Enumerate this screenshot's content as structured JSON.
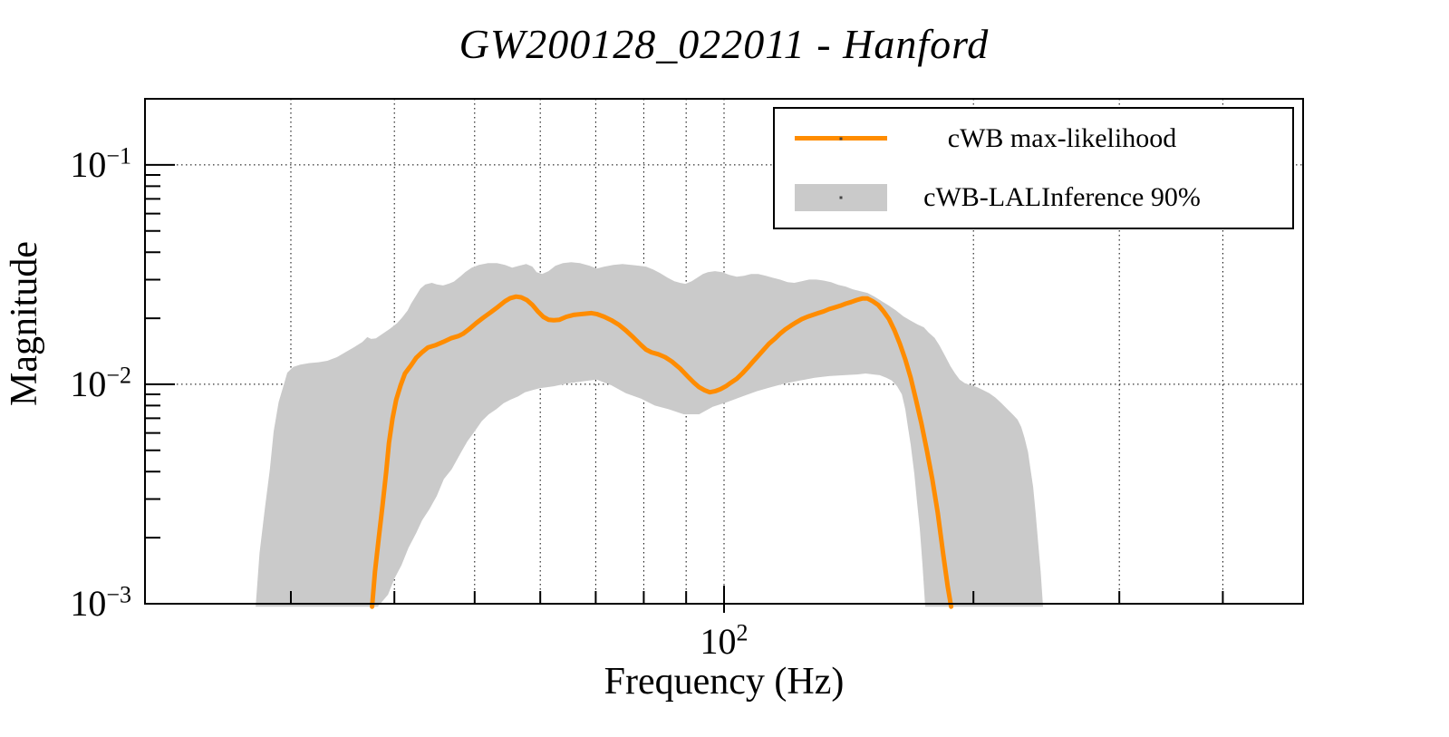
{
  "chart_data": {
    "type": "line",
    "title": "GW200128_022011 - Hanford",
    "xlabel": "Frequency (Hz)",
    "ylabel": "Magnitude",
    "xscale": "log",
    "yscale": "log",
    "xlim": [
      20,
      500
    ],
    "ylim": [
      0.001,
      0.2
    ],
    "grid": "dotted",
    "legend_position": "top-right",
    "colors": {
      "line": "#ff8c00",
      "band": "#cacaca",
      "axis": "#000000",
      "background": "#ffffff"
    },
    "axes": {
      "x": {
        "major_ticks": [
          {
            "value": 100,
            "base": "10",
            "exp": "2"
          }
        ],
        "minor_ticks": [
          30,
          40,
          50,
          60,
          70,
          80,
          90,
          200,
          300,
          400
        ]
      },
      "y": {
        "major_ticks": [
          {
            "value": 0.1,
            "base": "10",
            "exp": "−1"
          },
          {
            "value": 0.01,
            "base": "10",
            "exp": "−2"
          },
          {
            "value": 0.001,
            "base": "10",
            "exp": "−3"
          }
        ],
        "minor_ticks": [
          0.002,
          0.003,
          0.004,
          0.005,
          0.006,
          0.007,
          0.008,
          0.009,
          0.02,
          0.03,
          0.04,
          0.05,
          0.06,
          0.07,
          0.08,
          0.09
        ]
      }
    },
    "series": [
      {
        "name": "cWB max-likelihood",
        "type": "line",
        "color": "#ff8c00",
        "points": [
          [
            37.6,
            0.00097
          ],
          [
            37.9,
            0.0014
          ],
          [
            38.3,
            0.002
          ],
          [
            38.7,
            0.0028
          ],
          [
            39.1,
            0.004
          ],
          [
            39.4,
            0.0054
          ],
          [
            39.8,
            0.007
          ],
          [
            40.2,
            0.0085
          ],
          [
            40.7,
            0.0099
          ],
          [
            41.2,
            0.0112
          ],
          [
            41.9,
            0.0122
          ],
          [
            42.5,
            0.0132
          ],
          [
            43.2,
            0.014
          ],
          [
            43.9,
            0.0147
          ],
          [
            44.9,
            0.0151
          ],
          [
            45.8,
            0.0156
          ],
          [
            46.8,
            0.0162
          ],
          [
            47.8,
            0.0166
          ],
          [
            48.4,
            0.017
          ],
          [
            49.2,
            0.0178
          ],
          [
            50.2,
            0.019
          ],
          [
            51.2,
            0.0201
          ],
          [
            52.3,
            0.0213
          ],
          [
            53.4,
            0.0226
          ],
          [
            54.4,
            0.0239
          ],
          [
            55.2,
            0.0247
          ],
          [
            56.1,
            0.0251
          ],
          [
            56.9,
            0.0249
          ],
          [
            57.8,
            0.0242
          ],
          [
            58.7,
            0.023
          ],
          [
            59.6,
            0.0215
          ],
          [
            60.5,
            0.0203
          ],
          [
            61.4,
            0.0197
          ],
          [
            62.3,
            0.0196
          ],
          [
            63.3,
            0.0197
          ],
          [
            64.5,
            0.0203
          ],
          [
            65.8,
            0.0207
          ],
          [
            67.4,
            0.0209
          ],
          [
            69.2,
            0.0211
          ],
          [
            70.2,
            0.0209
          ],
          [
            71.7,
            0.0203
          ],
          [
            73.1,
            0.0196
          ],
          [
            74.6,
            0.0187
          ],
          [
            76.1,
            0.0176
          ],
          [
            77.8,
            0.0163
          ],
          [
            79.4,
            0.0151
          ],
          [
            80.5,
            0.0144
          ],
          [
            81.7,
            0.014
          ],
          [
            83.3,
            0.0137
          ],
          [
            84.9,
            0.0133
          ],
          [
            86.5,
            0.0127
          ],
          [
            88.5,
            0.0118
          ],
          [
            90.5,
            0.0108
          ],
          [
            91.9,
            0.0102
          ],
          [
            93.3,
            0.0097
          ],
          [
            94.7,
            0.0094
          ],
          [
            96.1,
            0.0092
          ],
          [
            97.5,
            0.0093
          ],
          [
            99.0,
            0.0095
          ],
          [
            100.5,
            0.0098
          ],
          [
            102.0,
            0.0102
          ],
          [
            103.6,
            0.0106
          ],
          [
            105.2,
            0.0112
          ],
          [
            106.8,
            0.0119
          ],
          [
            108.4,
            0.0127
          ],
          [
            110.0,
            0.0135
          ],
          [
            111.7,
            0.0144
          ],
          [
            113.3,
            0.0153
          ],
          [
            115.1,
            0.0161
          ],
          [
            116.8,
            0.017
          ],
          [
            118.6,
            0.0178
          ],
          [
            120.4,
            0.0185
          ],
          [
            122.3,
            0.0192
          ],
          [
            124.1,
            0.0198
          ],
          [
            126.0,
            0.0203
          ],
          [
            128.0,
            0.0207
          ],
          [
            129.9,
            0.0211
          ],
          [
            131.9,
            0.0215
          ],
          [
            133.9,
            0.022
          ],
          [
            136.0,
            0.0224
          ],
          [
            138.1,
            0.0228
          ],
          [
            140.2,
            0.0233
          ],
          [
            142.4,
            0.0237
          ],
          [
            144.6,
            0.0242
          ],
          [
            146.8,
            0.0246
          ],
          [
            149.0,
            0.0246
          ],
          [
            151.2,
            0.0239
          ],
          [
            153.5,
            0.023
          ],
          [
            155.8,
            0.0215
          ],
          [
            158.2,
            0.0198
          ],
          [
            160.6,
            0.0176
          ],
          [
            163.0,
            0.0153
          ],
          [
            165.5,
            0.013
          ],
          [
            168.0,
            0.0107
          ],
          [
            170.5,
            0.0085
          ],
          [
            173.1,
            0.0066
          ],
          [
            175.7,
            0.005
          ],
          [
            178.4,
            0.0037
          ],
          [
            181.1,
            0.0026
          ],
          [
            183.8,
            0.0017
          ],
          [
            186.2,
            0.0012
          ],
          [
            188.0,
            0.00097
          ]
        ]
      },
      {
        "name": "cWB-LALInference 90%",
        "type": "band",
        "color": "#cacaca",
        "upper": [
          [
            27.2,
            0.00097
          ],
          [
            27.5,
            0.0017
          ],
          [
            27.9,
            0.0027
          ],
          [
            28.3,
            0.0041
          ],
          [
            28.6,
            0.0061
          ],
          [
            29.0,
            0.0083
          ],
          [
            29.4,
            0.0099
          ],
          [
            29.7,
            0.0113
          ],
          [
            30.2,
            0.012
          ],
          [
            30.8,
            0.0123
          ],
          [
            31.6,
            0.0125
          ],
          [
            32.4,
            0.0126
          ],
          [
            33.2,
            0.0128
          ],
          [
            34.1,
            0.0133
          ],
          [
            34.9,
            0.014
          ],
          [
            35.8,
            0.0148
          ],
          [
            36.6,
            0.0156
          ],
          [
            37.1,
            0.0164
          ],
          [
            37.5,
            0.0161
          ],
          [
            38.0,
            0.0162
          ],
          [
            38.7,
            0.017
          ],
          [
            39.5,
            0.0179
          ],
          [
            40.3,
            0.019
          ],
          [
            40.9,
            0.0202
          ],
          [
            41.5,
            0.0217
          ],
          [
            41.9,
            0.0233
          ],
          [
            42.5,
            0.0254
          ],
          [
            43.0,
            0.0273
          ],
          [
            43.6,
            0.0285
          ],
          [
            44.4,
            0.029
          ],
          [
            45.0,
            0.0285
          ],
          [
            45.8,
            0.0282
          ],
          [
            46.6,
            0.0288
          ],
          [
            47.2,
            0.0294
          ],
          [
            48.0,
            0.0309
          ],
          [
            48.7,
            0.0324
          ],
          [
            49.6,
            0.034
          ],
          [
            50.6,
            0.035
          ],
          [
            51.9,
            0.0357
          ],
          [
            53.2,
            0.0357
          ],
          [
            54.4,
            0.035
          ],
          [
            55.5,
            0.034
          ],
          [
            56.6,
            0.0347
          ],
          [
            57.7,
            0.0353
          ],
          [
            58.7,
            0.0344
          ],
          [
            59.4,
            0.0324
          ],
          [
            60.3,
            0.0318
          ],
          [
            61.4,
            0.0328
          ],
          [
            62.6,
            0.0347
          ],
          [
            63.9,
            0.0357
          ],
          [
            65.4,
            0.036
          ],
          [
            67.0,
            0.0357
          ],
          [
            68.8,
            0.0347
          ],
          [
            70.2,
            0.0337
          ],
          [
            71.7,
            0.0344
          ],
          [
            73.5,
            0.035
          ],
          [
            75.4,
            0.0353
          ],
          [
            77.3,
            0.035
          ],
          [
            78.9,
            0.0347
          ],
          [
            80.5,
            0.0344
          ],
          [
            82.1,
            0.0334
          ],
          [
            83.7,
            0.0321
          ],
          [
            85.5,
            0.0306
          ],
          [
            87.1,
            0.0295
          ],
          [
            88.5,
            0.029
          ],
          [
            89.8,
            0.0287
          ],
          [
            91.4,
            0.0295
          ],
          [
            92.8,
            0.0306
          ],
          [
            94.3,
            0.0318
          ],
          [
            95.6,
            0.0324
          ],
          [
            97.5,
            0.0328
          ],
          [
            99.5,
            0.0324
          ],
          [
            101.5,
            0.0315
          ],
          [
            103.6,
            0.0309
          ],
          [
            105.7,
            0.0312
          ],
          [
            107.8,
            0.0318
          ],
          [
            110.0,
            0.0318
          ],
          [
            112.3,
            0.0312
          ],
          [
            114.5,
            0.0306
          ],
          [
            116.8,
            0.03
          ],
          [
            119.3,
            0.0292
          ],
          [
            121.6,
            0.029
          ],
          [
            124.1,
            0.0295
          ],
          [
            126.7,
            0.03
          ],
          [
            129.3,
            0.03
          ],
          [
            131.9,
            0.0297
          ],
          [
            134.6,
            0.0292
          ],
          [
            137.4,
            0.0284
          ],
          [
            140.2,
            0.0279
          ],
          [
            143.0,
            0.0271
          ],
          [
            145.9,
            0.0266
          ],
          [
            149.0,
            0.0261
          ],
          [
            151.9,
            0.0251
          ],
          [
            155.0,
            0.0239
          ],
          [
            158.2,
            0.0228
          ],
          [
            161.3,
            0.0217
          ],
          [
            164.6,
            0.0204
          ],
          [
            168.0,
            0.0195
          ],
          [
            171.4,
            0.0187
          ],
          [
            174.2,
            0.0182
          ],
          [
            176.6,
            0.0172
          ],
          [
            179.5,
            0.0163
          ],
          [
            182.0,
            0.015
          ],
          [
            184.8,
            0.0135
          ],
          [
            187.6,
            0.0121
          ],
          [
            190.1,
            0.0112
          ],
          [
            192.5,
            0.0105
          ],
          [
            195.4,
            0.0101
          ],
          [
            198.7,
            0.0099
          ],
          [
            202.1,
            0.0097
          ],
          [
            205.5,
            0.0094
          ],
          [
            209.0,
            0.0091
          ],
          [
            212.6,
            0.0087
          ],
          [
            216.2,
            0.0082
          ],
          [
            219.8,
            0.0077
          ],
          [
            223.0,
            0.0073
          ],
          [
            226.1,
            0.0069
          ],
          [
            228.4,
            0.0064
          ],
          [
            230.5,
            0.0057
          ],
          [
            232.8,
            0.0049
          ],
          [
            234.4,
            0.0041
          ],
          [
            236.1,
            0.0034
          ],
          [
            237.7,
            0.0026
          ],
          [
            239.4,
            0.0019
          ],
          [
            241.1,
            0.0014
          ],
          [
            242.7,
            0.00097
          ]
        ],
        "lower": [
          [
            38.2,
            0.00097
          ],
          [
            39.3,
            0.0011
          ],
          [
            40.0,
            0.0013
          ],
          [
            40.8,
            0.0015
          ],
          [
            41.6,
            0.0018
          ],
          [
            42.5,
            0.0021
          ],
          [
            43.2,
            0.0024
          ],
          [
            44.1,
            0.0027
          ],
          [
            45.0,
            0.0031
          ],
          [
            45.9,
            0.0037
          ],
          [
            46.9,
            0.0041
          ],
          [
            48.0,
            0.0048
          ],
          [
            49.0,
            0.0055
          ],
          [
            50.0,
            0.0061
          ],
          [
            51.0,
            0.0068
          ],
          [
            52.0,
            0.0073
          ],
          [
            53.1,
            0.0077
          ],
          [
            54.2,
            0.0082
          ],
          [
            55.2,
            0.0085
          ],
          [
            56.4,
            0.0088
          ],
          [
            57.5,
            0.0092
          ],
          [
            58.7,
            0.0094
          ],
          [
            59.9,
            0.0096
          ],
          [
            62.3,
            0.0098
          ],
          [
            64.8,
            0.0101
          ],
          [
            67.4,
            0.0103
          ],
          [
            70.2,
            0.0105
          ],
          [
            73.1,
            0.0099
          ],
          [
            76.1,
            0.0091
          ],
          [
            79.4,
            0.0086
          ],
          [
            82.5,
            0.008
          ],
          [
            85.7,
            0.0077
          ],
          [
            89.4,
            0.0073
          ],
          [
            91.4,
            0.0073
          ],
          [
            93.3,
            0.0073
          ],
          [
            96.9,
            0.0079
          ],
          [
            100.9,
            0.0083
          ],
          [
            105.2,
            0.0088
          ],
          [
            109.5,
            0.0093
          ],
          [
            113.9,
            0.0097
          ],
          [
            118.6,
            0.0101
          ],
          [
            123.5,
            0.0104
          ],
          [
            128.6,
            0.0107
          ],
          [
            133.9,
            0.0109
          ],
          [
            139.5,
            0.011
          ],
          [
            145.1,
            0.0111
          ],
          [
            148.2,
            0.0112
          ],
          [
            151.2,
            0.0111
          ],
          [
            154.2,
            0.011
          ],
          [
            157.0,
            0.0107
          ],
          [
            159.4,
            0.0104
          ],
          [
            161.8,
            0.0098
          ],
          [
            163.9,
            0.009
          ],
          [
            165.5,
            0.0077
          ],
          [
            166.7,
            0.0064
          ],
          [
            168.0,
            0.0053
          ],
          [
            169.7,
            0.0039
          ],
          [
            171.0,
            0.0029
          ],
          [
            172.3,
            0.0022
          ],
          [
            173.6,
            0.0015
          ],
          [
            174.9,
            0.00097
          ]
        ]
      }
    ]
  }
}
